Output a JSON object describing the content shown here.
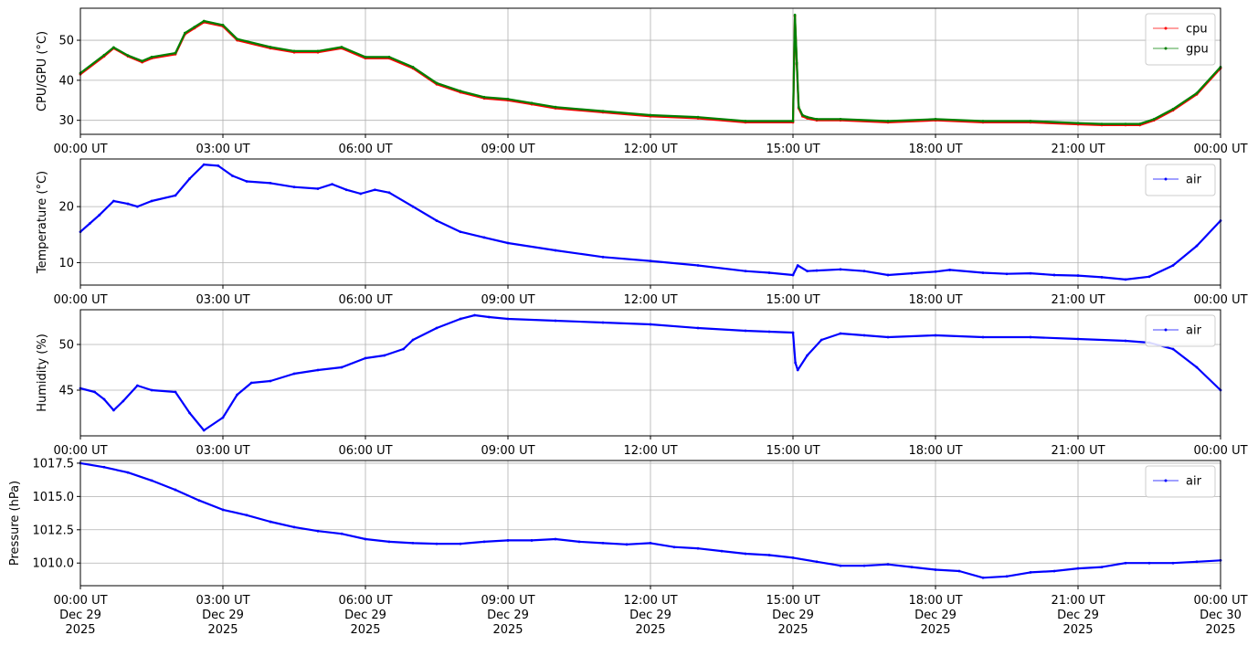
{
  "chart_data": [
    {
      "type": "line",
      "ylabel": "CPU/GPU (°C)",
      "ylim": [
        26.5,
        58
      ],
      "yticks": [
        30,
        40,
        50
      ],
      "xlim": [
        0,
        24
      ],
      "x_tick_hours": [
        0,
        3,
        6,
        9,
        12,
        15,
        18,
        21,
        24
      ],
      "x_tick_labels": [
        "00:00 UT",
        "03:00 UT",
        "06:00 UT",
        "09:00 UT",
        "12:00 UT",
        "15:00 UT",
        "18:00 UT",
        "21:00 UT",
        "00:00 UT"
      ],
      "grid": true,
      "legend_position": "top-right",
      "x_unit": "hours UT",
      "series": [
        {
          "name": "cpu",
          "color": "#ff0000",
          "x": [
            0,
            0.5,
            0.7,
            1.0,
            1.3,
            1.5,
            2.0,
            2.2,
            2.4,
            2.6,
            3.0,
            3.3,
            4.0,
            4.5,
            5.0,
            5.5,
            6.0,
            6.5,
            7.0,
            7.5,
            8.0,
            8.5,
            9.0,
            9.5,
            10.0,
            11.0,
            12.0,
            13.0,
            14.0,
            15.0,
            15.04,
            15.08,
            15.12,
            15.2,
            15.3,
            15.5,
            16.0,
            17.0,
            18.0,
            19.0,
            20.0,
            21.0,
            21.5,
            22.0,
            22.3,
            22.6,
            23.0,
            23.5,
            24.0
          ],
          "y": [
            41.5,
            46,
            48,
            46,
            44.5,
            45.5,
            46.5,
            51.5,
            53,
            54.5,
            53.5,
            50,
            48,
            47,
            47,
            48,
            45.5,
            45.5,
            43,
            39,
            37,
            35.5,
            35,
            34,
            33,
            32,
            31,
            30.5,
            29.5,
            29.5,
            56,
            44,
            33,
            31,
            30.5,
            30,
            30,
            29.5,
            30,
            29.5,
            29.5,
            29,
            28.8,
            28.8,
            28.8,
            30,
            32.5,
            36.5,
            43
          ]
        },
        {
          "name": "gpu",
          "color": "#008000",
          "x": [
            0,
            0.5,
            0.7,
            1.0,
            1.3,
            1.5,
            2.0,
            2.2,
            2.4,
            2.6,
            3.0,
            3.3,
            4.0,
            4.5,
            5.0,
            5.5,
            6.0,
            6.5,
            7.0,
            7.5,
            8.0,
            8.5,
            9.0,
            9.5,
            10.0,
            11.0,
            12.0,
            13.0,
            14.0,
            15.0,
            15.04,
            15.08,
            15.12,
            15.2,
            15.3,
            15.5,
            16.0,
            17.0,
            18.0,
            19.0,
            20.0,
            21.0,
            21.5,
            22.0,
            22.3,
            22.6,
            23.0,
            23.5,
            24.0
          ],
          "y": [
            41.8,
            46.3,
            48.2,
            46.2,
            44.8,
            45.8,
            46.8,
            51.8,
            53.3,
            54.8,
            53.8,
            50.3,
            48.3,
            47.3,
            47.3,
            48.3,
            45.8,
            45.8,
            43.3,
            39.3,
            37.3,
            35.8,
            35.3,
            34.3,
            33.3,
            32.3,
            31.3,
            30.8,
            29.8,
            29.8,
            56.3,
            44.3,
            33.3,
            31.3,
            30.8,
            30.3,
            30.3,
            29.8,
            30.3,
            29.8,
            29.8,
            29.3,
            29.1,
            29.1,
            29.1,
            30.3,
            32.8,
            36.8,
            43.3
          ]
        }
      ]
    },
    {
      "type": "line",
      "ylabel": "Temperature (°C)",
      "ylim": [
        6,
        28.5
      ],
      "yticks": [
        10,
        20
      ],
      "xlim": [
        0,
        24
      ],
      "x_tick_hours": [
        0,
        3,
        6,
        9,
        12,
        15,
        18,
        21,
        24
      ],
      "x_tick_labels": [
        "00:00 UT",
        "03:00 UT",
        "06:00 UT",
        "09:00 UT",
        "12:00 UT",
        "15:00 UT",
        "18:00 UT",
        "21:00 UT",
        "00:00 UT"
      ],
      "grid": true,
      "legend_position": "top-right",
      "x_unit": "hours UT",
      "series": [
        {
          "name": "air",
          "color": "#0000ff",
          "x": [
            0,
            0.2,
            0.4,
            0.7,
            1.0,
            1.2,
            1.5,
            2.0,
            2.3,
            2.6,
            2.9,
            3.2,
            3.5,
            4.0,
            4.5,
            5.0,
            5.3,
            5.6,
            5.9,
            6.2,
            6.5,
            7.0,
            7.5,
            8.0,
            8.5,
            9.0,
            10.0,
            11.0,
            12.0,
            13.0,
            14.0,
            14.5,
            15.0,
            15.1,
            15.3,
            15.5,
            16.0,
            16.5,
            17.0,
            17.5,
            18.0,
            18.3,
            19.0,
            19.5,
            20.0,
            20.5,
            21.0,
            21.5,
            22.0,
            22.5,
            23.0,
            23.5,
            24.0
          ],
          "y": [
            15.5,
            17,
            18.5,
            21,
            20.5,
            20,
            21,
            22,
            25,
            27.5,
            27.3,
            25.5,
            24.5,
            24.2,
            23.5,
            23.2,
            24,
            23,
            22.3,
            23,
            22.5,
            20,
            17.5,
            15.5,
            14.5,
            13.5,
            12.2,
            11,
            10.3,
            9.5,
            8.5,
            8.2,
            7.8,
            9.5,
            8.5,
            8.6,
            8.8,
            8.5,
            7.8,
            8.1,
            8.4,
            8.7,
            8.2,
            8.0,
            8.1,
            7.8,
            7.7,
            7.4,
            7.0,
            7.5,
            9.5,
            13,
            17.5
          ]
        }
      ]
    },
    {
      "type": "line",
      "ylabel": "Humidity (%)",
      "ylim": [
        40,
        53.8
      ],
      "yticks": [
        45,
        50
      ],
      "xlim": [
        0,
        24
      ],
      "x_tick_hours": [
        0,
        3,
        6,
        9,
        12,
        15,
        18,
        21,
        24
      ],
      "x_tick_labels": [
        "00:00 UT",
        "03:00 UT",
        "06:00 UT",
        "09:00 UT",
        "12:00 UT",
        "15:00 UT",
        "18:00 UT",
        "21:00 UT",
        "00:00 UT"
      ],
      "grid": true,
      "legend_position": "top-right",
      "x_unit": "hours UT",
      "series": [
        {
          "name": "air",
          "color": "#0000ff",
          "x": [
            0,
            0.3,
            0.5,
            0.7,
            0.9,
            1.2,
            1.5,
            2.0,
            2.3,
            2.6,
            3.0,
            3.3,
            3.6,
            4.0,
            4.5,
            5.0,
            5.5,
            6.0,
            6.4,
            6.8,
            7.0,
            7.5,
            8.0,
            8.3,
            8.6,
            9.0,
            10.0,
            11.0,
            12.0,
            13.0,
            14.0,
            14.5,
            15.0,
            15.05,
            15.1,
            15.3,
            15.6,
            16.0,
            16.5,
            17.0,
            18.0,
            19.0,
            20.0,
            21.0,
            22.0,
            22.5,
            23.0,
            23.5,
            24.0
          ],
          "y": [
            45.2,
            44.8,
            44.0,
            42.8,
            43.8,
            45.5,
            45.0,
            44.8,
            42.5,
            40.6,
            42.0,
            44.5,
            45.8,
            46.0,
            46.8,
            47.2,
            47.5,
            48.5,
            48.8,
            49.5,
            50.5,
            51.8,
            52.8,
            53.2,
            53.0,
            52.8,
            52.6,
            52.4,
            52.2,
            51.8,
            51.5,
            51.4,
            51.3,
            48.0,
            47.2,
            48.8,
            50.5,
            51.2,
            51.0,
            50.8,
            51.0,
            50.8,
            50.8,
            50.6,
            50.4,
            50.2,
            49.5,
            47.5,
            45.0
          ]
        }
      ]
    },
    {
      "type": "line",
      "ylabel": "Pressure (hPa)",
      "ylim": [
        1008.3,
        1017.7
      ],
      "yticks": [
        1010.0,
        1012.5,
        1015.0,
        1017.5
      ],
      "ytick_labels": [
        "1010.0",
        "1012.5",
        "1015.0",
        "1017.5"
      ],
      "xlim": [
        0,
        24
      ],
      "x_tick_hours": [
        0,
        3,
        6,
        9,
        12,
        15,
        18,
        21,
        24
      ],
      "x_tick_labels": [
        [
          "00:00 UT",
          "Dec 29",
          "2025"
        ],
        [
          "03:00 UT",
          "Dec 29",
          "2025"
        ],
        [
          "06:00 UT",
          "Dec 29",
          "2025"
        ],
        [
          "09:00 UT",
          "Dec 29",
          "2025"
        ],
        [
          "12:00 UT",
          "Dec 29",
          "2025"
        ],
        [
          "15:00 UT",
          "Dec 29",
          "2025"
        ],
        [
          "18:00 UT",
          "Dec 29",
          "2025"
        ],
        [
          "21:00 UT",
          "Dec 29",
          "2025"
        ],
        [
          "00:00 UT",
          "Dec 30",
          "2025"
        ]
      ],
      "grid": true,
      "legend_position": "top-right",
      "x_unit": "hours UT",
      "series": [
        {
          "name": "air",
          "color": "#0000ff",
          "x": [
            0,
            0.5,
            1.0,
            1.5,
            2.0,
            2.5,
            3.0,
            3.5,
            4.0,
            4.5,
            5.0,
            5.5,
            6.0,
            6.5,
            7.0,
            7.5,
            8.0,
            8.5,
            9.0,
            9.5,
            10.0,
            10.5,
            11.0,
            11.5,
            12.0,
            12.5,
            13.0,
            13.5,
            14.0,
            14.5,
            15.0,
            15.5,
            16.0,
            16.5,
            17.0,
            17.5,
            18.0,
            18.5,
            19.0,
            19.5,
            20.0,
            20.5,
            21.0,
            21.5,
            22.0,
            22.5,
            23.0,
            23.5,
            24.0
          ],
          "y": [
            1017.5,
            1017.2,
            1016.8,
            1016.2,
            1015.5,
            1014.7,
            1014.0,
            1013.6,
            1013.1,
            1012.7,
            1012.4,
            1012.2,
            1011.8,
            1011.6,
            1011.5,
            1011.45,
            1011.45,
            1011.6,
            1011.7,
            1011.7,
            1011.8,
            1011.6,
            1011.5,
            1011.4,
            1011.5,
            1011.2,
            1011.1,
            1010.9,
            1010.7,
            1010.6,
            1010.4,
            1010.1,
            1009.8,
            1009.8,
            1009.9,
            1009.7,
            1009.5,
            1009.4,
            1008.9,
            1009.0,
            1009.3,
            1009.4,
            1009.6,
            1009.7,
            1010.0,
            1010.0,
            1010.0,
            1010.1,
            1010.2
          ]
        }
      ]
    }
  ]
}
